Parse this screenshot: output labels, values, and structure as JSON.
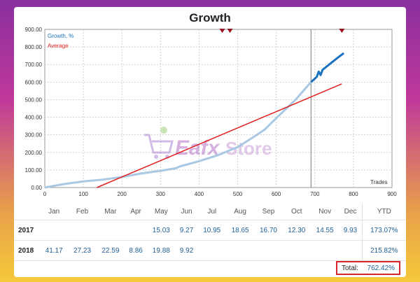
{
  "chart_data": {
    "type": "line",
    "title": "Growth",
    "xlabel": "Trades",
    "ylabel": "",
    "xlim": [
      0,
      900
    ],
    "ylim": [
      0,
      900
    ],
    "xticks": [
      0,
      100,
      200,
      300,
      400,
      500,
      600,
      700,
      800,
      900
    ],
    "yticks": [
      "0.00",
      "100.00",
      "200.00",
      "300.00",
      "400.00",
      "500.00",
      "600.00",
      "700.00",
      "800.00",
      "900.00"
    ],
    "legend": [
      "Growth, %",
      "Average"
    ],
    "vertical_marker_x": 690,
    "series": [
      {
        "name": "Growth, %",
        "color": "#a9c8e4",
        "x": [
          0,
          50,
          100,
          150,
          200,
          250,
          300,
          340,
          350,
          400,
          450,
          500,
          550,
          570,
          600,
          650,
          690
        ],
        "y": [
          0,
          20,
          35,
          45,
          60,
          80,
          95,
          110,
          120,
          150,
          185,
          230,
          300,
          330,
          395,
          500,
          600
        ]
      },
      {
        "name": "Growth, % (recent)",
        "color": "#1b73c0",
        "x": [
          690,
          705,
          710,
          715,
          720,
          740,
          760,
          775
        ],
        "y": [
          600,
          630,
          660,
          640,
          670,
          705,
          740,
          765
        ]
      },
      {
        "name": "Average",
        "color": "#e02020",
        "x": [
          135,
          770
        ],
        "y": [
          0,
          590
        ]
      }
    ],
    "markers_top_x": [
      460,
      480,
      770
    ]
  },
  "table": {
    "months": [
      "Jan",
      "Feb",
      "Mar",
      "Apr",
      "May",
      "Jun",
      "Jul",
      "Aug",
      "Sep",
      "Oct",
      "Nov",
      "Dec",
      "YTD"
    ],
    "rows": [
      {
        "year": "2017",
        "values": [
          "",
          "",
          "",
          "",
          "15.03",
          "9.27",
          "10.95",
          "18.65",
          "16.70",
          "12.30",
          "14.55",
          "9.93",
          "173.07%"
        ]
      },
      {
        "year": "2018",
        "values": [
          "41.17",
          "27.23",
          "22.59",
          "8.86",
          "19.88",
          "9.92",
          "",
          "",
          "",
          "",
          "",
          "",
          "215.82%"
        ]
      }
    ],
    "total_label": "Total:",
    "total_value": "762.42%"
  },
  "watermark": {
    "text_eafx": "Eafx",
    "text_store": "Store"
  }
}
